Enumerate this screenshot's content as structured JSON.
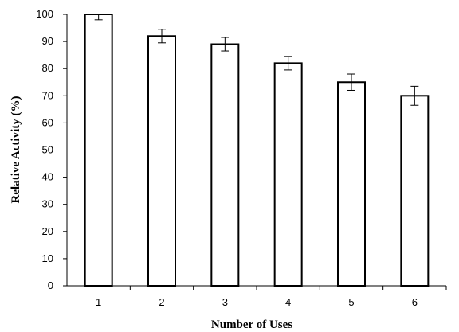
{
  "chart_data": {
    "type": "bar",
    "title": "",
    "xlabel": "Number of Uses",
    "ylabel": "Relative Activity (%)",
    "categories": [
      "1",
      "2",
      "3",
      "4",
      "5",
      "6"
    ],
    "values": [
      100,
      92,
      89,
      82,
      75,
      70
    ],
    "error": [
      2,
      2.5,
      2.5,
      2.5,
      3,
      3.5
    ],
    "ylim": [
      0,
      100
    ],
    "yticks": [
      "0",
      "10",
      "20",
      "30",
      "40",
      "50",
      "60",
      "70",
      "80",
      "90",
      "100"
    ],
    "grid": false,
    "bar_fill": "#ffffff",
    "bar_stroke": "#000000"
  }
}
